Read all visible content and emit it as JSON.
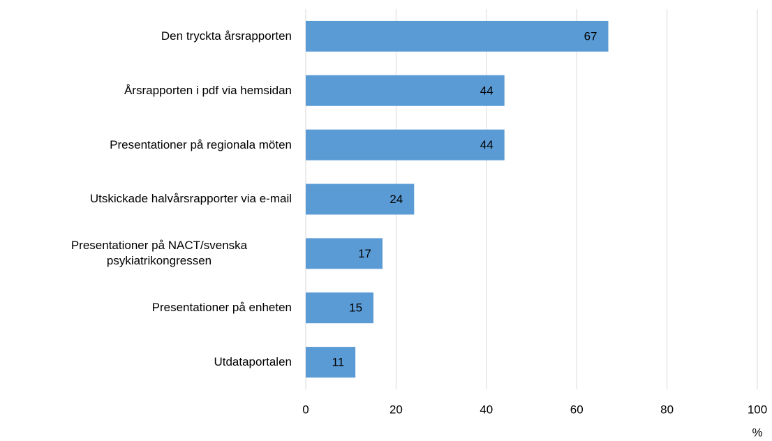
{
  "chart_data": {
    "type": "barh",
    "categories": [
      "Den tryckta årsrapporten",
      "Årsrapporten i pdf via hemsidan",
      "Presentationer på regionala möten",
      "Utskickade halvårsrapporter via e-mail",
      "Presentationer på NACT/svenska psykiatrikongressen",
      "Presentationer på enheten",
      "Utdataportalen"
    ],
    "values": [
      67,
      44,
      44,
      24,
      17,
      15,
      11
    ],
    "color": "#5b9bd5",
    "xlabel": "%",
    "xlim": [
      0,
      100
    ],
    "xticks": [
      0,
      20,
      40,
      60,
      80,
      100
    ],
    "grid": true
  }
}
